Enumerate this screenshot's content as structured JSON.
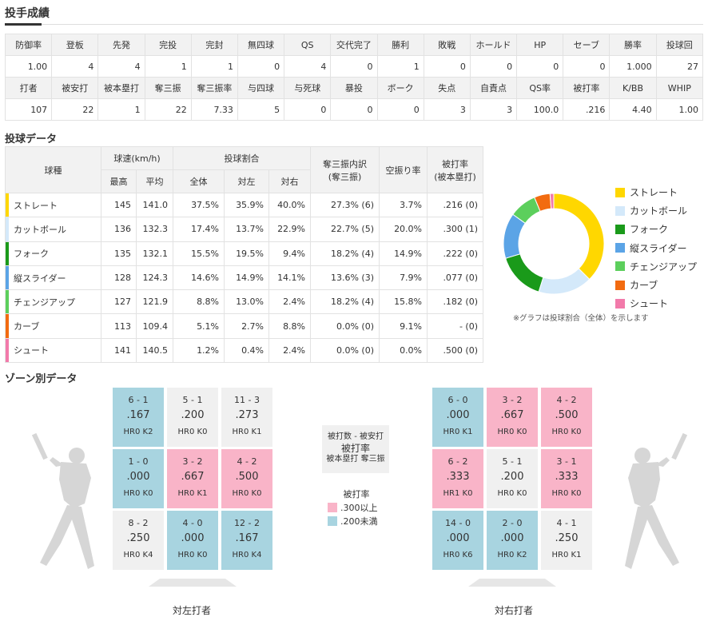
{
  "titles": {
    "pitching_record": "投手成績",
    "pitch_data": "投球データ",
    "zone_data": "ゾーン別データ"
  },
  "stats": {
    "row1_headers": [
      "防御率",
      "登板",
      "先発",
      "完投",
      "完封",
      "無四球",
      "QS",
      "交代完了",
      "勝利",
      "敗戦",
      "ホールド",
      "HP",
      "セーブ",
      "勝率",
      "投球回"
    ],
    "row1_values": [
      "1.00",
      "4",
      "4",
      "1",
      "1",
      "0",
      "4",
      "0",
      "1",
      "0",
      "0",
      "0",
      "0",
      "1.000",
      "27"
    ],
    "row2_headers": [
      "打者",
      "被安打",
      "被本塁打",
      "奪三振",
      "奪三振率",
      "与四球",
      "与死球",
      "暴投",
      "ボーク",
      "失点",
      "自責点",
      "QS率",
      "被打率",
      "K/BB",
      "WHIP"
    ],
    "row2_values": [
      "107",
      "22",
      "1",
      "22",
      "7.33",
      "5",
      "0",
      "0",
      "0",
      "3",
      "3",
      "100.0",
      ".216",
      "4.40",
      "1.00"
    ]
  },
  "pitch_table": {
    "headers": {
      "type": "球種",
      "speed": "球速(km/h)",
      "speed_max": "最高",
      "speed_avg": "平均",
      "ratio": "投球割合",
      "ratio_all": "全体",
      "ratio_left": "対左",
      "ratio_right": "対右",
      "k_breakdown": "奪三振内訳",
      "k_breakdown_sub": "(奪三振)",
      "whiff": "空振り率",
      "bavg": "被打率",
      "bavg_sub": "(被本塁打)"
    },
    "rows": [
      {
        "name": "ストレート",
        "color": "#ffd700",
        "max": "145",
        "avg": "141.0",
        "all": "37.5%",
        "left": "35.9%",
        "right": "40.0%",
        "k": "27.3% (6)",
        "whiff": "3.7%",
        "bavg": ".216 (0)"
      },
      {
        "name": "カットボール",
        "color": "#d4e9fa",
        "max": "136",
        "avg": "132.3",
        "all": "17.4%",
        "left": "13.7%",
        "right": "22.9%",
        "k": "22.7% (5)",
        "whiff": "20.0%",
        "bavg": ".300 (1)"
      },
      {
        "name": "フォーク",
        "color": "#1a9a1a",
        "max": "135",
        "avg": "132.1",
        "all": "15.5%",
        "left": "19.5%",
        "right": "9.4%",
        "k": "18.2% (4)",
        "whiff": "14.9%",
        "bavg": ".222 (0)"
      },
      {
        "name": "縦スライダー",
        "color": "#5ba4e6",
        "max": "128",
        "avg": "124.3",
        "all": "14.6%",
        "left": "14.9%",
        "right": "14.1%",
        "k": "13.6% (3)",
        "whiff": "7.9%",
        "bavg": ".077 (0)"
      },
      {
        "name": "チェンジアップ",
        "color": "#5ccf5c",
        "max": "127",
        "avg": "121.9",
        "all": "8.8%",
        "left": "13.0%",
        "right": "2.4%",
        "k": "18.2% (4)",
        "whiff": "15.8%",
        "bavg": ".182 (0)"
      },
      {
        "name": "カーブ",
        "color": "#f26b10",
        "max": "113",
        "avg": "109.4",
        "all": "5.1%",
        "left": "2.7%",
        "right": "8.8%",
        "k": "0.0% (0)",
        "whiff": "9.1%",
        "bavg": "- (0)"
      },
      {
        "name": "シュート",
        "color": "#f27aaa",
        "max": "141",
        "avg": "140.5",
        "all": "1.2%",
        "left": "0.4%",
        "right": "2.4%",
        "k": "0.0% (0)",
        "whiff": "0.0%",
        "bavg": ".500 (0)"
      }
    ]
  },
  "chart_data": {
    "type": "pie",
    "categories": [
      "ストレート",
      "カットボール",
      "フォーク",
      "縦スライダー",
      "チェンジアップ",
      "カーブ",
      "シュート"
    ],
    "values": [
      37.5,
      17.4,
      15.5,
      14.6,
      8.8,
      5.1,
      1.2
    ],
    "colors": [
      "#ffd700",
      "#d4e9fa",
      "#1a9a1a",
      "#5ba4e6",
      "#5ccf5c",
      "#f26b10",
      "#f27aaa"
    ],
    "legend": "right",
    "note": "※グラフは投球割合（全体）を示します"
  },
  "zones": {
    "left": [
      {
        "ab": "6 - 1",
        "avg": ".167",
        "hrk": "HR0 K2",
        "level": "low"
      },
      {
        "ab": "5 - 1",
        "avg": ".200",
        "hrk": "HR0 K0",
        "level": "mid"
      },
      {
        "ab": "11 - 3",
        "avg": ".273",
        "hrk": "HR0 K1",
        "level": "mid"
      },
      {
        "ab": "1 - 0",
        "avg": ".000",
        "hrk": "HR0 K0",
        "level": "low"
      },
      {
        "ab": "3 - 2",
        "avg": ".667",
        "hrk": "HR0 K1",
        "level": "high"
      },
      {
        "ab": "4 - 2",
        "avg": ".500",
        "hrk": "HR0 K0",
        "level": "high"
      },
      {
        "ab": "8 - 2",
        "avg": ".250",
        "hrk": "HR0 K4",
        "level": "mid"
      },
      {
        "ab": "4 - 0",
        "avg": ".000",
        "hrk": "HR0 K0",
        "level": "low"
      },
      {
        "ab": "12 - 2",
        "avg": ".167",
        "hrk": "HR0 K4",
        "level": "low"
      }
    ],
    "right": [
      {
        "ab": "6 - 0",
        "avg": ".000",
        "hrk": "HR0 K1",
        "level": "low"
      },
      {
        "ab": "3 - 2",
        "avg": ".667",
        "hrk": "HR0 K0",
        "level": "high"
      },
      {
        "ab": "4 - 2",
        "avg": ".500",
        "hrk": "HR0 K0",
        "level": "high"
      },
      {
        "ab": "6 - 2",
        "avg": ".333",
        "hrk": "HR1 K0",
        "level": "high"
      },
      {
        "ab": "5 - 1",
        "avg": ".200",
        "hrk": "HR0 K0",
        "level": "mid"
      },
      {
        "ab": "3 - 1",
        "avg": ".333",
        "hrk": "HR0 K0",
        "level": "high"
      },
      {
        "ab": "14 - 0",
        "avg": ".000",
        "hrk": "HR0 K6",
        "level": "low"
      },
      {
        "ab": "2 - 0",
        "avg": ".000",
        "hrk": "HR0 K2",
        "level": "low"
      },
      {
        "ab": "4 - 1",
        "avg": ".250",
        "hrk": "HR0 K1",
        "level": "mid"
      }
    ],
    "left_label": "対左打者",
    "right_label": "対右打者",
    "key": {
      "line1": "被打数 - 被安打",
      "line2": "被打率",
      "line3": "被本塁打 奪三振"
    },
    "legend": {
      "title": "被打率",
      "high": ".300以上",
      "low": ".200未満"
    },
    "colors": {
      "high": "#f9b4c8",
      "low": "#a8d4e0",
      "mid": "#f0f0f0"
    }
  }
}
